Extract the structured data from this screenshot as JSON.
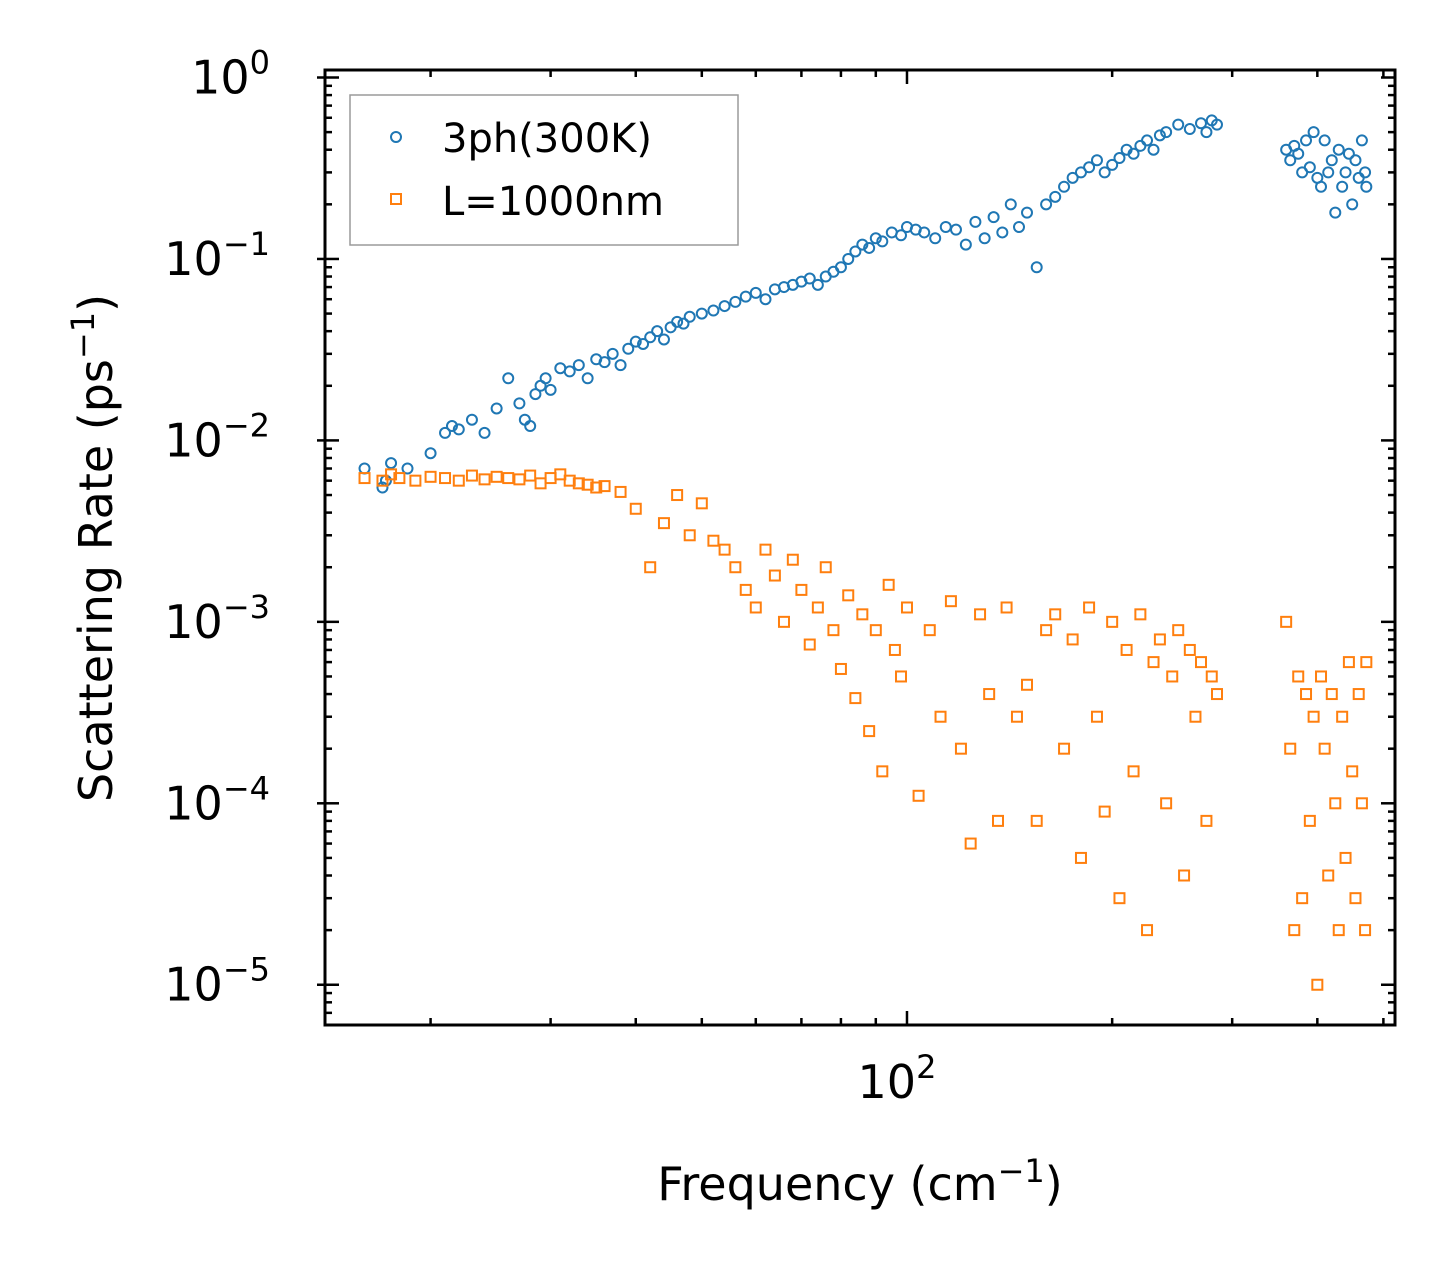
{
  "chart_data": {
    "type": "scatter",
    "xscale": "log",
    "yscale": "log",
    "xlim": [
      14,
      520
    ],
    "ylim": [
      6e-06,
      1.1
    ],
    "xlabel": "Frequency (cm",
    "xlabel_sup": "−1",
    "xlabel_close": ")",
    "ylabel": "Scattering Rate (ps",
    "ylabel_sup": "−1",
    "ylabel_close": ")",
    "x_major_ticks": [
      {
        "value": 100,
        "base": "10",
        "exp": "2"
      }
    ],
    "y_major_ticks": [
      {
        "value": 1,
        "base": "10",
        "exp": "0"
      },
      {
        "value": 0.1,
        "base": "10",
        "exp": "−1"
      },
      {
        "value": 0.01,
        "base": "10",
        "exp": "−2"
      },
      {
        "value": 0.001,
        "base": "10",
        "exp": "−3"
      },
      {
        "value": 0.0001,
        "base": "10",
        "exp": "−4"
      },
      {
        "value": 1e-05,
        "base": "10",
        "exp": "−5"
      }
    ],
    "legend_position": "top-left",
    "series": [
      {
        "name": "3ph(300K)",
        "marker": "circle",
        "color": "#1f77b4",
        "x": [
          16,
          17,
          17.2,
          17.5,
          18.5,
          20,
          21,
          21.5,
          22,
          23,
          24,
          25,
          26,
          27,
          27.5,
          28,
          28.5,
          29,
          29.5,
          30,
          31,
          32,
          33,
          34,
          35,
          36,
          37,
          38,
          39,
          40,
          41,
          42,
          43,
          44,
          45,
          46,
          47,
          48,
          50,
          52,
          54,
          56,
          58,
          60,
          62,
          64,
          66,
          68,
          70,
          72,
          74,
          76,
          78,
          80,
          82,
          84,
          86,
          88,
          90,
          92,
          95,
          98,
          100,
          103,
          106,
          110,
          114,
          118,
          122,
          126,
          130,
          134,
          138,
          142,
          146,
          150,
          155,
          160,
          165,
          170,
          175,
          180,
          185,
          190,
          195,
          200,
          205,
          210,
          215,
          220,
          225,
          230,
          235,
          240,
          250,
          260,
          270,
          275,
          280,
          285,
          360,
          365,
          370,
          375,
          380,
          385,
          390,
          395,
          400,
          405,
          410,
          415,
          420,
          425,
          430,
          435,
          440,
          445,
          450,
          455,
          460,
          465,
          470,
          472
        ],
        "y": [
          0.007,
          0.0055,
          0.006,
          0.0075,
          0.007,
          0.0085,
          0.011,
          0.012,
          0.0115,
          0.013,
          0.011,
          0.015,
          0.022,
          0.016,
          0.013,
          0.012,
          0.018,
          0.02,
          0.022,
          0.019,
          0.025,
          0.024,
          0.026,
          0.022,
          0.028,
          0.027,
          0.03,
          0.026,
          0.032,
          0.035,
          0.034,
          0.037,
          0.04,
          0.036,
          0.042,
          0.045,
          0.044,
          0.048,
          0.05,
          0.052,
          0.055,
          0.058,
          0.062,
          0.065,
          0.06,
          0.068,
          0.07,
          0.072,
          0.075,
          0.078,
          0.072,
          0.08,
          0.085,
          0.09,
          0.1,
          0.11,
          0.12,
          0.115,
          0.13,
          0.125,
          0.14,
          0.135,
          0.15,
          0.145,
          0.14,
          0.13,
          0.15,
          0.145,
          0.12,
          0.16,
          0.13,
          0.17,
          0.14,
          0.2,
          0.15,
          0.18,
          0.09,
          0.2,
          0.22,
          0.25,
          0.28,
          0.3,
          0.32,
          0.35,
          0.3,
          0.33,
          0.36,
          0.4,
          0.38,
          0.42,
          0.45,
          0.4,
          0.48,
          0.5,
          0.55,
          0.52,
          0.56,
          0.5,
          0.58,
          0.55,
          0.4,
          0.35,
          0.42,
          0.38,
          0.3,
          0.45,
          0.32,
          0.5,
          0.28,
          0.25,
          0.45,
          0.3,
          0.35,
          0.18,
          0.4,
          0.25,
          0.3,
          0.38,
          0.2,
          0.35,
          0.28,
          0.45,
          0.3,
          0.25
        ]
      },
      {
        "name": "L=1000nm",
        "marker": "square",
        "color": "#ff7f0e",
        "x": [
          16,
          17,
          17.5,
          18,
          19,
          20,
          21,
          22,
          23,
          24,
          25,
          26,
          27,
          28,
          29,
          30,
          31,
          32,
          33,
          34,
          35,
          36,
          38,
          40,
          42,
          44,
          46,
          48,
          50,
          52,
          54,
          56,
          58,
          60,
          62,
          64,
          66,
          68,
          70,
          72,
          74,
          76,
          78,
          80,
          82,
          84,
          86,
          88,
          90,
          92,
          94,
          96,
          98,
          100,
          104,
          108,
          112,
          116,
          120,
          124,
          128,
          132,
          136,
          140,
          145,
          150,
          155,
          160,
          165,
          170,
          175,
          180,
          185,
          190,
          195,
          200,
          205,
          210,
          215,
          220,
          225,
          230,
          235,
          240,
          245,
          250,
          255,
          260,
          265,
          270,
          275,
          280,
          285,
          360,
          365,
          370,
          375,
          380,
          385,
          390,
          395,
          400,
          405,
          410,
          415,
          420,
          425,
          430,
          435,
          440,
          445,
          450,
          455,
          460,
          465,
          470,
          472
        ],
        "y": [
          0.0062,
          0.006,
          0.0065,
          0.0062,
          0.006,
          0.0063,
          0.0062,
          0.006,
          0.0064,
          0.0061,
          0.0063,
          0.0062,
          0.0061,
          0.0064,
          0.0058,
          0.0062,
          0.0065,
          0.006,
          0.0058,
          0.0057,
          0.0055,
          0.0056,
          0.0052,
          0.0042,
          0.002,
          0.0035,
          0.005,
          0.003,
          0.0045,
          0.0028,
          0.0025,
          0.002,
          0.0015,
          0.0012,
          0.0025,
          0.0018,
          0.001,
          0.0022,
          0.0015,
          0.00075,
          0.0012,
          0.002,
          0.0009,
          0.00055,
          0.0014,
          0.00038,
          0.0011,
          0.00025,
          0.0009,
          0.00015,
          0.0016,
          0.0007,
          0.0005,
          0.0012,
          0.00011,
          0.0009,
          0.0003,
          0.0013,
          0.0002,
          6e-05,
          0.0011,
          0.0004,
          8e-05,
          0.0012,
          0.0003,
          0.00045,
          8e-05,
          0.0009,
          0.0011,
          0.0002,
          0.0008,
          5e-05,
          0.0012,
          0.0003,
          9e-05,
          0.001,
          3e-05,
          0.0007,
          0.00015,
          0.0011,
          2e-05,
          0.0006,
          0.0008,
          0.0001,
          0.0005,
          0.0009,
          4e-05,
          0.0007,
          0.0003,
          0.0006,
          8e-05,
          0.0005,
          0.0004,
          0.001,
          0.0002,
          2e-05,
          0.0005,
          3e-05,
          0.0004,
          8e-05,
          0.0003,
          1e-05,
          0.0005,
          0.0002,
          4e-05,
          0.0004,
          0.0001,
          2e-05,
          0.0003,
          5e-05,
          0.0006,
          0.00015,
          3e-05,
          0.0004,
          0.0001,
          2e-05,
          0.0006
        ]
      }
    ]
  }
}
